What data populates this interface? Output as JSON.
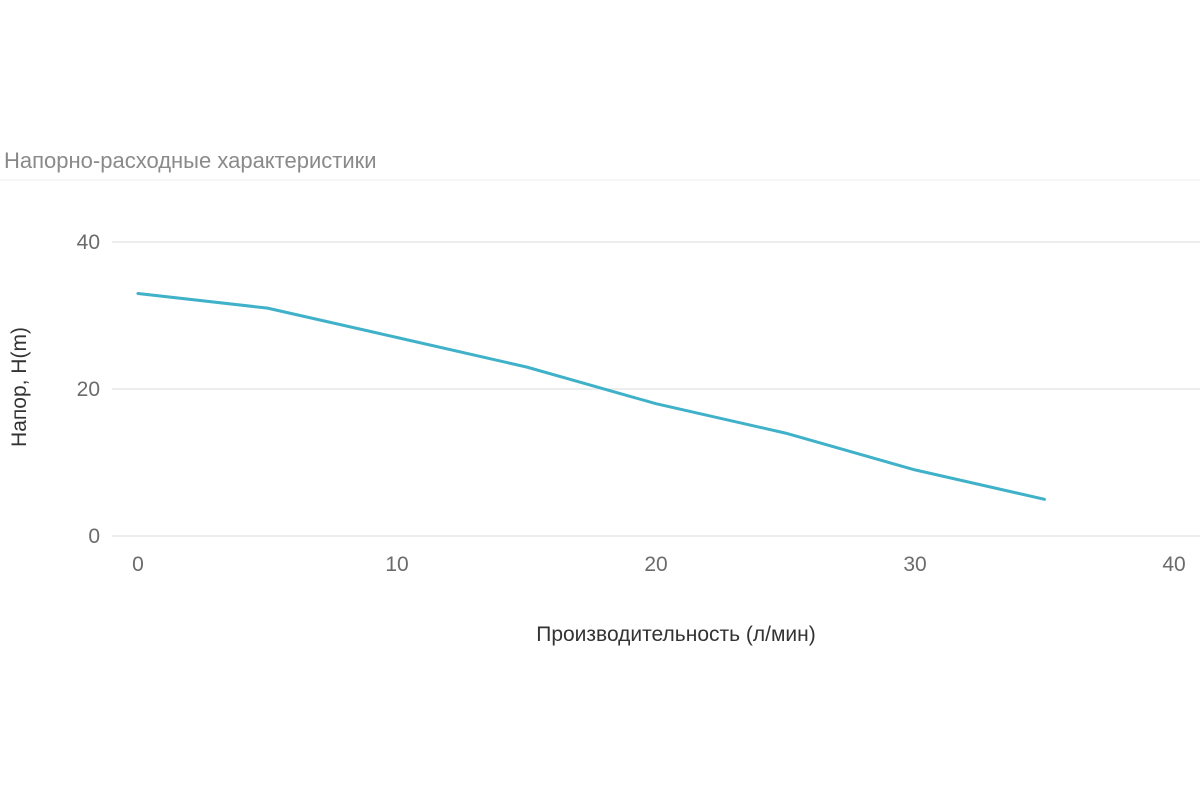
{
  "chart_data": {
    "type": "line",
    "title": "Напорно-расходные характеристики",
    "xlabel": "Производительность (л/мин)",
    "ylabel": "Напор, H(m)",
    "xlim": [
      0,
      40
    ],
    "ylim": [
      0,
      40
    ],
    "x_ticks": [
      0,
      10,
      20,
      30,
      40
    ],
    "y_ticks": [
      0,
      20,
      40
    ],
    "x_tick_labels": [
      "0",
      "10",
      "20",
      "30",
      "40"
    ],
    "y_tick_labels": [
      "0",
      "20",
      "40"
    ],
    "grid": true,
    "legend": "none",
    "series": [
      {
        "color": "#3fb1c8",
        "x": [
          0,
          5,
          10,
          15,
          20,
          25,
          30,
          35
        ],
        "y": [
          33,
          31,
          27,
          23,
          18,
          14,
          9,
          5
        ]
      }
    ]
  }
}
